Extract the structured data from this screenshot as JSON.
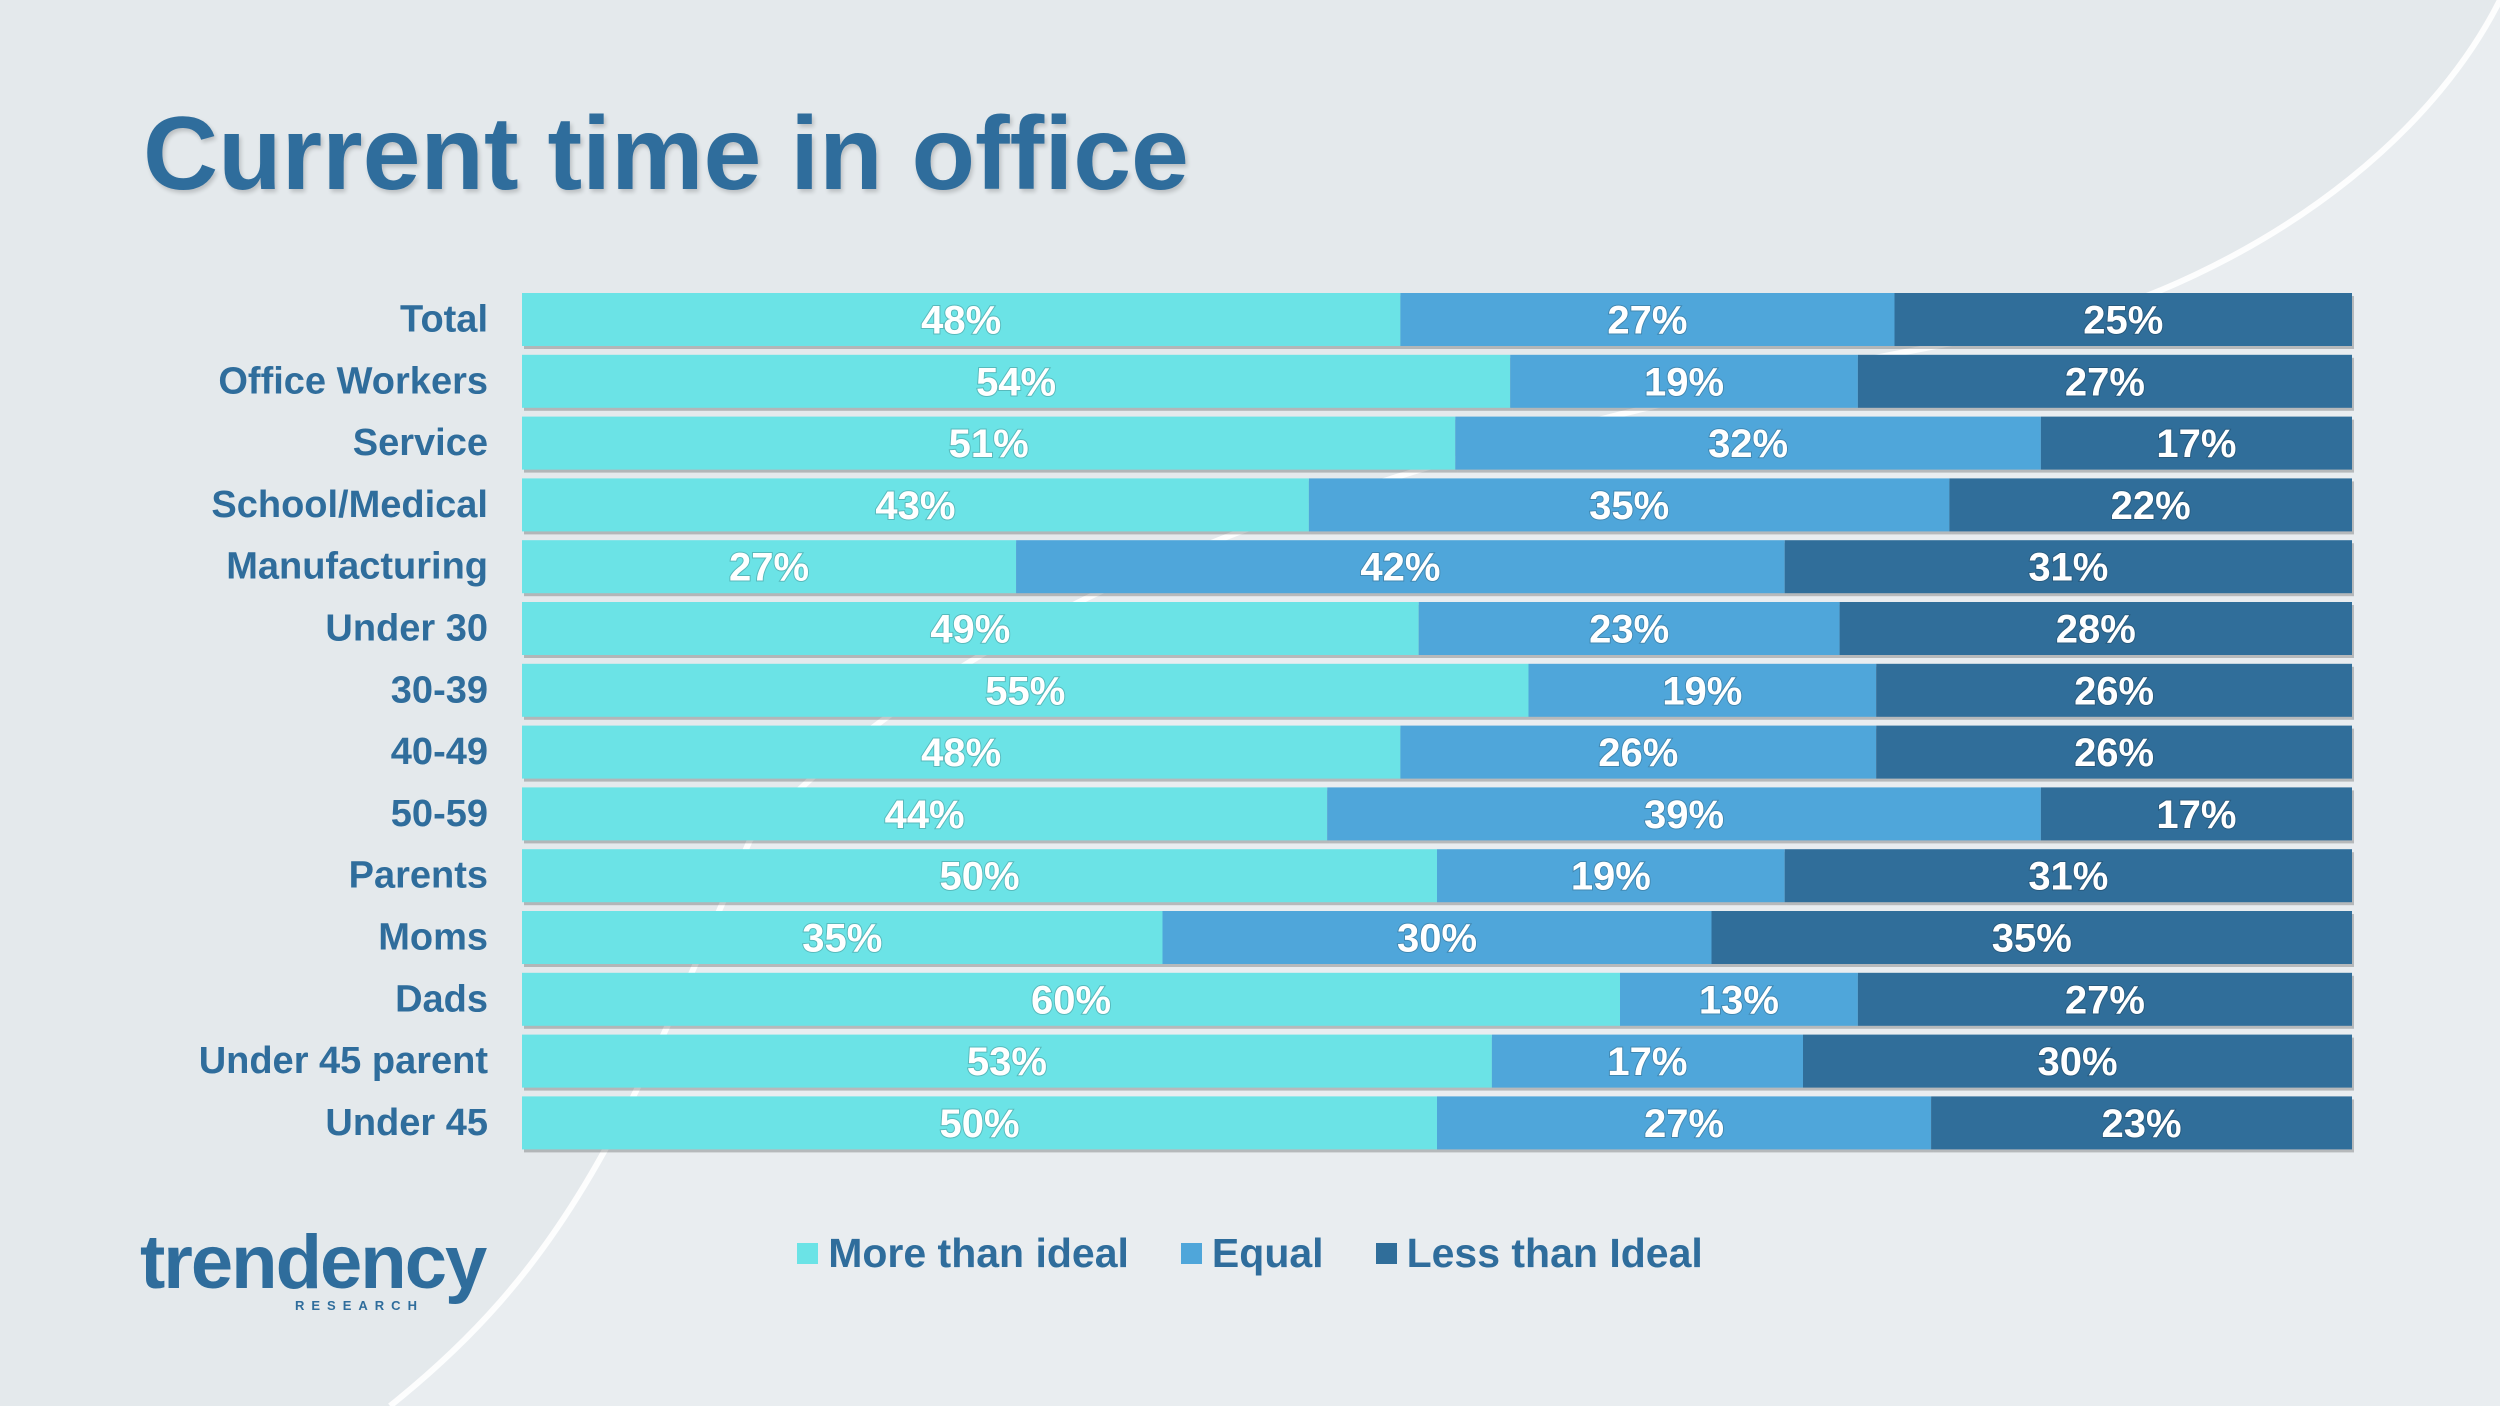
{
  "title": "Current time in office",
  "colors": {
    "more_than_ideal": "#6be3e6",
    "equal": "#4fa6da",
    "less_than_ideal": "#306e9a",
    "title": "#2f6d9c",
    "background": "#e4e9ec"
  },
  "logo": {
    "name": "trendency",
    "subtitle": "RESEARCH"
  },
  "chart_data": {
    "type": "bar",
    "orientation": "horizontal",
    "stacked": true,
    "title": "Current time in office",
    "unit": "%",
    "categories": [
      "Total",
      "Office Workers",
      "Service",
      "School/Medical",
      "Manufacturing",
      "Under 30",
      "30-39",
      "40-49",
      "50-59",
      "Parents",
      "Moms",
      "Dads",
      "Under 45 parent",
      "Under 45"
    ],
    "series": [
      {
        "name": "More than ideal",
        "color": "#6be3e6",
        "values": [
          48,
          54,
          51,
          43,
          27,
          49,
          55,
          48,
          44,
          50,
          35,
          60,
          53,
          50
        ]
      },
      {
        "name": "Equal",
        "color": "#4fa6da",
        "values": [
          27,
          19,
          32,
          35,
          42,
          23,
          19,
          26,
          39,
          19,
          30,
          13,
          17,
          27
        ]
      },
      {
        "name": "Less than Ideal",
        "color": "#306e9a",
        "values": [
          25,
          27,
          17,
          22,
          31,
          28,
          26,
          26,
          17,
          31,
          35,
          27,
          30,
          23
        ]
      }
    ],
    "legend_position": "bottom",
    "grid": false
  }
}
